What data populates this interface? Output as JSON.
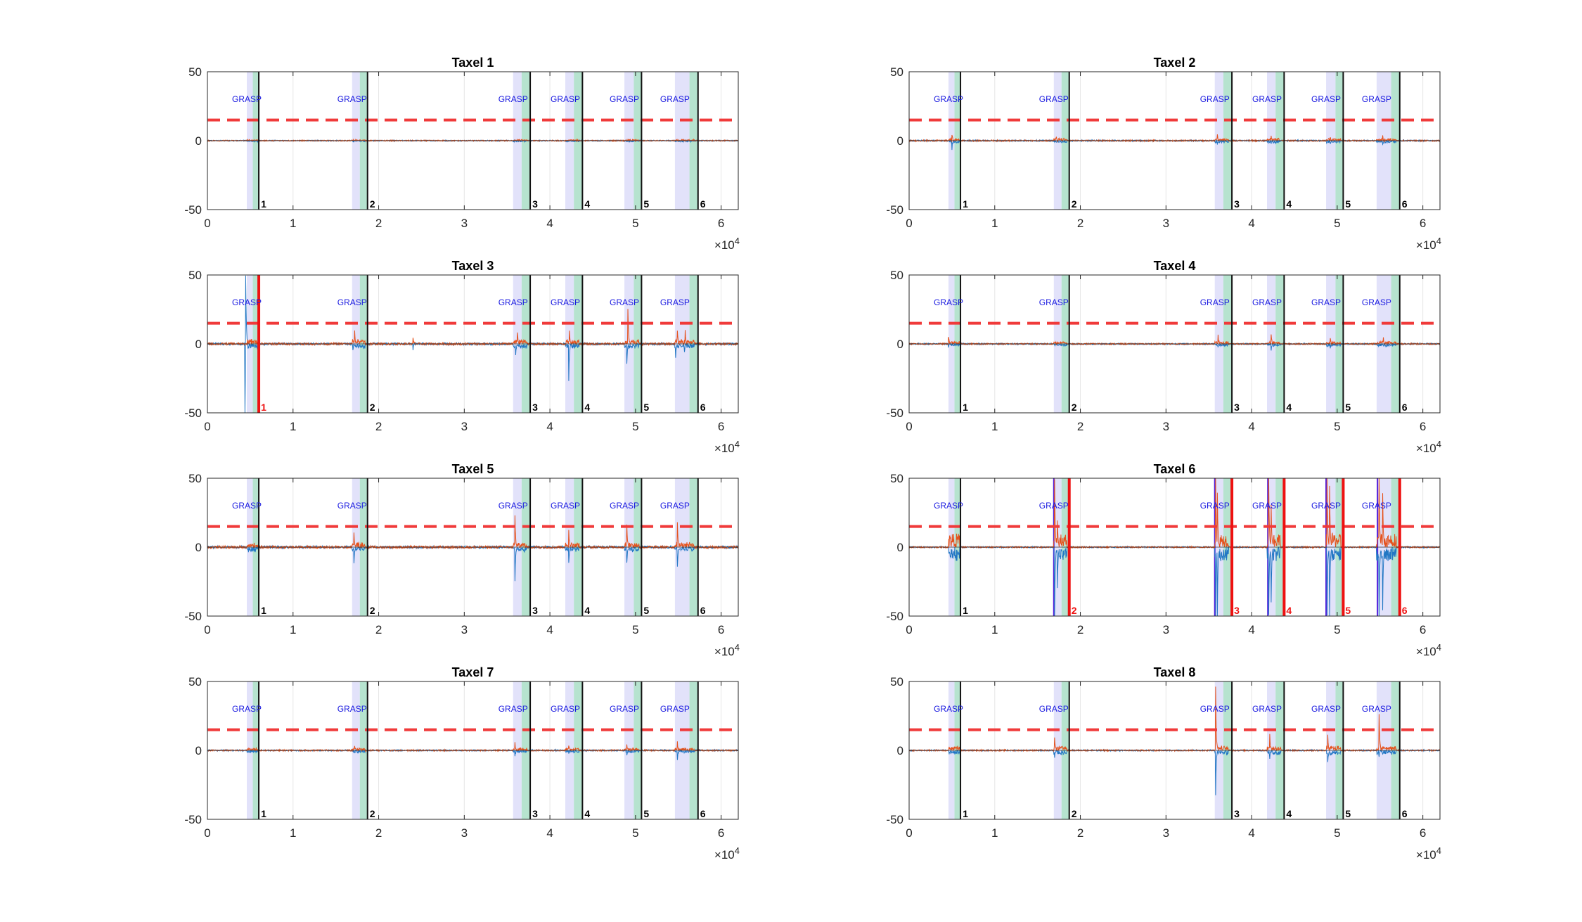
{
  "figure": {
    "x_exponent_base": "10",
    "x_exponent_power": "4",
    "grasp_label": "GRASP"
  },
  "colors": {
    "series_blue": "#2277c4",
    "series_orange": "#e5511b",
    "threshold": "#f03a3a",
    "grasp_window": "#e2e2fa",
    "release_window": "#b6e3cf",
    "release_line_normal": "#111111",
    "release_line_event": "#ee1111",
    "onset_line": "#5522dd",
    "grasp_text": "#1a1ae0",
    "axis": "#262626",
    "grid": "#e6e6e6"
  },
  "chart_data": [
    {
      "type": "line",
      "title": "Taxel 1",
      "xlim": [
        0,
        62000
      ],
      "ylim": [
        -50,
        50
      ],
      "xticks": [
        0,
        1,
        2,
        3,
        4,
        5,
        6
      ],
      "yticks": [
        -50,
        0,
        50
      ],
      "xscale_exponent": 4,
      "grid": "vertical",
      "threshold": 15,
      "grasp_windows": [
        [
          4600,
          5300
        ],
        [
          16900,
          17800
        ],
        [
          35700,
          36700
        ],
        [
          41800,
          42800
        ],
        [
          48700,
          49800
        ],
        [
          54600,
          56300
        ]
      ],
      "release_windows": [
        [
          5300,
          6000
        ],
        [
          17800,
          18700
        ],
        [
          36700,
          37700
        ],
        [
          42800,
          43800
        ],
        [
          49800,
          50700
        ],
        [
          56300,
          57300
        ]
      ],
      "events": [
        {
          "label": "1",
          "triggered": false
        },
        {
          "label": "2",
          "triggered": false
        },
        {
          "label": "3",
          "triggered": false
        },
        {
          "label": "4",
          "triggered": false
        },
        {
          "label": "5",
          "triggered": false
        },
        {
          "label": "6",
          "triggered": false
        }
      ],
      "spikes": {
        "blue": [],
        "orange": []
      },
      "noise": 0.4,
      "grasp_response": 0.6
    },
    {
      "type": "line",
      "title": "Taxel 2",
      "xlim": [
        0,
        62000
      ],
      "ylim": [
        -50,
        50
      ],
      "xticks": [
        0,
        1,
        2,
        3,
        4,
        5,
        6
      ],
      "yticks": [
        -50,
        0,
        50
      ],
      "xscale_exponent": 4,
      "grid": "vertical",
      "threshold": 15,
      "grasp_windows": [
        [
          4600,
          5300
        ],
        [
          16900,
          17800
        ],
        [
          35700,
          36700
        ],
        [
          41800,
          42800
        ],
        [
          48700,
          49800
        ],
        [
          54600,
          56300
        ]
      ],
      "release_windows": [
        [
          5300,
          6000
        ],
        [
          17800,
          18700
        ],
        [
          36700,
          37700
        ],
        [
          42800,
          43800
        ],
        [
          49800,
          50700
        ],
        [
          56300,
          57300
        ]
      ],
      "events": [
        {
          "label": "1",
          "triggered": false
        },
        {
          "label": "2",
          "triggered": false
        },
        {
          "label": "3",
          "triggered": false
        },
        {
          "label": "4",
          "triggered": false
        },
        {
          "label": "5",
          "triggered": false
        },
        {
          "label": "6",
          "triggered": false
        }
      ],
      "spikes": {
        "blue": [
          [
            5000,
            -6
          ],
          [
            17200,
            -2
          ],
          [
            36000,
            -3
          ],
          [
            42300,
            -3
          ],
          [
            49200,
            -3
          ],
          [
            55300,
            -3
          ]
        ],
        "orange": [
          [
            5000,
            5
          ],
          [
            17200,
            2
          ],
          [
            36000,
            4
          ],
          [
            42300,
            3
          ],
          [
            49200,
            3
          ],
          [
            55300,
            3
          ]
        ]
      },
      "noise": 0.5,
      "grasp_response": 1.5
    },
    {
      "type": "line",
      "title": "Taxel 3",
      "xlim": [
        0,
        62000
      ],
      "ylim": [
        -50,
        50
      ],
      "xticks": [
        0,
        1,
        2,
        3,
        4,
        5,
        6
      ],
      "yticks": [
        -50,
        0,
        50
      ],
      "xscale_exponent": 4,
      "grid": "vertical",
      "threshold": 15,
      "grasp_windows": [
        [
          4600,
          5300
        ],
        [
          16900,
          17800
        ],
        [
          35700,
          36700
        ],
        [
          41800,
          42800
        ],
        [
          48700,
          49800
        ],
        [
          54600,
          56300
        ]
      ],
      "release_windows": [
        [
          5300,
          6000
        ],
        [
          17800,
          18700
        ],
        [
          36700,
          37700
        ],
        [
          42800,
          43800
        ],
        [
          49800,
          50700
        ],
        [
          56300,
          57300
        ]
      ],
      "events": [
        {
          "label": "1",
          "triggered": true
        },
        {
          "label": "2",
          "triggered": false
        },
        {
          "label": "3",
          "triggered": false
        },
        {
          "label": "4",
          "triggered": false
        },
        {
          "label": "5",
          "triggered": false
        },
        {
          "label": "6",
          "triggered": false
        }
      ],
      "spikes": {
        "blue": [
          [
            4400,
            -50
          ],
          [
            4450,
            50
          ],
          [
            17000,
            -4
          ],
          [
            24000,
            -4
          ],
          [
            36000,
            -9
          ],
          [
            42200,
            -27
          ],
          [
            49000,
            -14
          ],
          [
            54700,
            -10
          ],
          [
            55700,
            -6
          ]
        ],
        "orange": [
          [
            17200,
            9
          ],
          [
            24000,
            5
          ],
          [
            36200,
            9
          ],
          [
            42300,
            10
          ],
          [
            49100,
            26
          ],
          [
            54900,
            10
          ],
          [
            55800,
            10
          ]
        ]
      },
      "noise": 0.8,
      "grasp_response": 3
    },
    {
      "type": "line",
      "title": "Taxel 4",
      "xlim": [
        0,
        62000
      ],
      "ylim": [
        -50,
        50
      ],
      "xticks": [
        0,
        1,
        2,
        3,
        4,
        5,
        6
      ],
      "yticks": [
        -50,
        0,
        50
      ],
      "xscale_exponent": 4,
      "grid": "vertical",
      "threshold": 15,
      "grasp_windows": [
        [
          4600,
          5300
        ],
        [
          16900,
          17800
        ],
        [
          35700,
          36700
        ],
        [
          41800,
          42800
        ],
        [
          48700,
          49800
        ],
        [
          54600,
          56300
        ]
      ],
      "release_windows": [
        [
          5300,
          6000
        ],
        [
          17800,
          18700
        ],
        [
          36700,
          37700
        ],
        [
          42800,
          43800
        ],
        [
          49800,
          50700
        ],
        [
          56300,
          57300
        ]
      ],
      "events": [
        {
          "label": "1",
          "triggered": false
        },
        {
          "label": "2",
          "triggered": false
        },
        {
          "label": "3",
          "triggered": false
        },
        {
          "label": "4",
          "triggered": false
        },
        {
          "label": "5",
          "triggered": false
        },
        {
          "label": "6",
          "triggered": false
        }
      ],
      "spikes": {
        "blue": [
          [
            4600,
            -2
          ],
          [
            36100,
            -3
          ],
          [
            42300,
            -4
          ],
          [
            49200,
            -3
          ],
          [
            55400,
            -2
          ]
        ],
        "orange": [
          [
            4600,
            6
          ],
          [
            36100,
            6
          ],
          [
            42300,
            7
          ],
          [
            49200,
            5
          ],
          [
            55400,
            4
          ]
        ]
      },
      "noise": 0.5,
      "grasp_response": 1.5
    },
    {
      "type": "line",
      "title": "Taxel 5",
      "xlim": [
        0,
        62000
      ],
      "ylim": [
        -50,
        50
      ],
      "xticks": [
        0,
        1,
        2,
        3,
        4,
        5,
        6
      ],
      "yticks": [
        -50,
        0,
        50
      ],
      "xscale_exponent": 4,
      "grid": "vertical",
      "threshold": 15,
      "grasp_windows": [
        [
          4600,
          5300
        ],
        [
          16900,
          17800
        ],
        [
          35700,
          36700
        ],
        [
          41800,
          42800
        ],
        [
          48700,
          49800
        ],
        [
          54600,
          56300
        ]
      ],
      "release_windows": [
        [
          5300,
          6000
        ],
        [
          17800,
          18700
        ],
        [
          36700,
          37700
        ],
        [
          42800,
          43800
        ],
        [
          49800,
          50700
        ],
        [
          56300,
          57300
        ]
      ],
      "events": [
        {
          "label": "1",
          "triggered": false
        },
        {
          "label": "2",
          "triggered": false
        },
        {
          "label": "3",
          "triggered": false
        },
        {
          "label": "4",
          "triggered": false
        },
        {
          "label": "5",
          "triggered": false
        },
        {
          "label": "6",
          "triggered": false
        }
      ],
      "spikes": {
        "blue": [
          [
            17100,
            -11
          ],
          [
            35900,
            -24
          ],
          [
            42200,
            -12
          ],
          [
            49000,
            -12
          ],
          [
            54900,
            -15
          ]
        ],
        "orange": [
          [
            17100,
            10
          ],
          [
            35900,
            23
          ],
          [
            42200,
            12
          ],
          [
            49000,
            16
          ],
          [
            54900,
            18
          ]
        ]
      },
      "noise": 0.9,
      "grasp_response": 3
    },
    {
      "type": "line",
      "title": "Taxel 6",
      "xlim": [
        0,
        62000
      ],
      "ylim": [
        -50,
        50
      ],
      "xticks": [
        0,
        1,
        2,
        3,
        4,
        5,
        6
      ],
      "yticks": [
        -50,
        0,
        50
      ],
      "xscale_exponent": 4,
      "grid": "vertical",
      "threshold": 15,
      "grasp_windows": [
        [
          4600,
          5300
        ],
        [
          16900,
          17800
        ],
        [
          35700,
          36700
        ],
        [
          41800,
          42800
        ],
        [
          48700,
          49800
        ],
        [
          54600,
          56300
        ]
      ],
      "release_windows": [
        [
          5300,
          6000
        ],
        [
          17800,
          18700
        ],
        [
          36700,
          37700
        ],
        [
          42800,
          43800
        ],
        [
          49800,
          50700
        ],
        [
          56300,
          57300
        ]
      ],
      "events": [
        {
          "label": "1",
          "triggered": false
        },
        {
          "label": "2",
          "triggered": true
        },
        {
          "label": "3",
          "triggered": true
        },
        {
          "label": "4",
          "triggered": true
        },
        {
          "label": "5",
          "triggered": true
        },
        {
          "label": "6",
          "triggered": true
        }
      ],
      "onset_lines": [
        16900,
        35700,
        41900,
        48700,
        54700
      ],
      "spikes": {
        "blue": [
          [
            17000,
            -50
          ],
          [
            17300,
            -30
          ],
          [
            35800,
            -50
          ],
          [
            36000,
            -50
          ],
          [
            42000,
            -50
          ],
          [
            42300,
            -40
          ],
          [
            48800,
            -50
          ],
          [
            49100,
            -50
          ],
          [
            54900,
            -50
          ],
          [
            55300,
            -45
          ]
        ],
        "orange": [
          [
            17000,
            50
          ],
          [
            17300,
            20
          ],
          [
            35800,
            50
          ],
          [
            36000,
            40
          ],
          [
            42000,
            50
          ],
          [
            42300,
            30
          ],
          [
            48800,
            50
          ],
          [
            49100,
            45
          ],
          [
            54900,
            50
          ],
          [
            55300,
            40
          ]
        ]
      },
      "noise": 0.5,
      "grasp_response": 10
    },
    {
      "type": "line",
      "title": "Taxel 7",
      "xlim": [
        0,
        62000
      ],
      "ylim": [
        -50,
        50
      ],
      "xticks": [
        0,
        1,
        2,
        3,
        4,
        5,
        6
      ],
      "yticks": [
        -50,
        0,
        50
      ],
      "xscale_exponent": 4,
      "grid": "vertical",
      "threshold": 15,
      "grasp_windows": [
        [
          4600,
          5300
        ],
        [
          16900,
          17800
        ],
        [
          35700,
          36700
        ],
        [
          41800,
          42800
        ],
        [
          48700,
          49800
        ],
        [
          54600,
          56300
        ]
      ],
      "release_windows": [
        [
          5300,
          6000
        ],
        [
          17800,
          18700
        ],
        [
          36700,
          37700
        ],
        [
          42800,
          43800
        ],
        [
          49800,
          50700
        ],
        [
          56300,
          57300
        ]
      ],
      "events": [
        {
          "label": "1",
          "triggered": false
        },
        {
          "label": "2",
          "triggered": false
        },
        {
          "label": "3",
          "triggered": false
        },
        {
          "label": "4",
          "triggered": false
        },
        {
          "label": "5",
          "triggered": false
        },
        {
          "label": "6",
          "triggered": false
        }
      ],
      "spikes": {
        "blue": [
          [
            17200,
            -2
          ],
          [
            35900,
            -4
          ],
          [
            42200,
            -3
          ],
          [
            49000,
            -4
          ],
          [
            54900,
            -6
          ]
        ],
        "orange": [
          [
            17200,
            4
          ],
          [
            35900,
            5
          ],
          [
            42200,
            4
          ],
          [
            49000,
            5
          ],
          [
            54900,
            6
          ]
        ]
      },
      "noise": 0.5,
      "grasp_response": 1.5
    },
    {
      "type": "line",
      "title": "Taxel 8",
      "xlim": [
        0,
        62000
      ],
      "ylim": [
        -50,
        50
      ],
      "xticks": [
        0,
        1,
        2,
        3,
        4,
        5,
        6
      ],
      "yticks": [
        -50,
        0,
        50
      ],
      "xscale_exponent": 4,
      "grid": "vertical",
      "threshold": 15,
      "grasp_windows": [
        [
          4600,
          5300
        ],
        [
          16900,
          17800
        ],
        [
          35700,
          36700
        ],
        [
          41800,
          42800
        ],
        [
          48700,
          49800
        ],
        [
          54600,
          56300
        ]
      ],
      "release_windows": [
        [
          5300,
          6000
        ],
        [
          17800,
          18700
        ],
        [
          36700,
          37700
        ],
        [
          42800,
          43800
        ],
        [
          49800,
          50700
        ],
        [
          56300,
          57300
        ]
      ],
      "events": [
        {
          "label": "1",
          "triggered": false
        },
        {
          "label": "2",
          "triggered": false
        },
        {
          "label": "3",
          "triggered": false
        },
        {
          "label": "4",
          "triggered": false
        },
        {
          "label": "5",
          "triggered": false
        },
        {
          "label": "6",
          "triggered": false
        }
      ],
      "spikes": {
        "blue": [
          [
            17000,
            -6
          ],
          [
            35800,
            -32
          ],
          [
            42100,
            -6
          ],
          [
            48900,
            -9
          ],
          [
            54900,
            -4
          ]
        ],
        "orange": [
          [
            17000,
            10
          ],
          [
            35800,
            46
          ],
          [
            42100,
            11
          ],
          [
            48900,
            11
          ],
          [
            54900,
            27
          ]
        ]
      },
      "noise": 0.5,
      "grasp_response": 3
    }
  ]
}
